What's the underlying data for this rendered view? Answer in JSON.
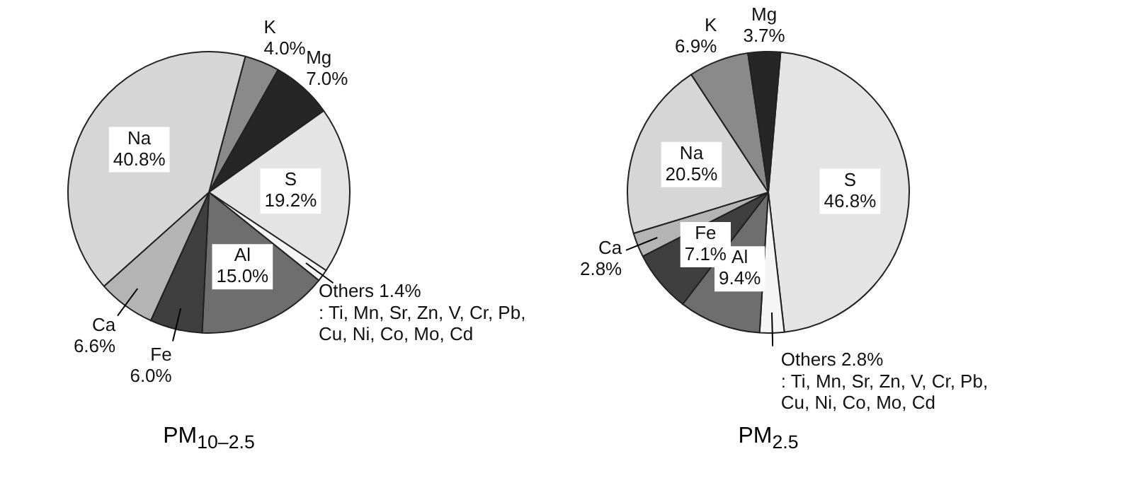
{
  "chart_data": [
    {
      "type": "pie",
      "title": "PM$_{10–2.5}$",
      "categories": [
        "K",
        "Mg",
        "S",
        "Others",
        "Al",
        "Fe",
        "Ca",
        "Na"
      ],
      "values": [
        4.0,
        7.0,
        19.2,
        1.4,
        15.0,
        6.0,
        6.6,
        40.8
      ],
      "value_labels": [
        "4.0%",
        "7.0%",
        "19.2%",
        "1.4%",
        "15.0%",
        "6.0%",
        "6.6%",
        "40.8%"
      ],
      "colors": [
        "#8a8a8a",
        "#262626",
        "#e4e4e4",
        "#f5f5f5",
        "#6e6e6e",
        "#3f3f3f",
        "#b4b4b4",
        "#d6d6d6"
      ],
      "annotations": [
        ": Ti, Mn, Sr, Zn, V, Cr, Pb, Cu, Ni, Co, Mo, Cd"
      ]
    },
    {
      "type": "pie",
      "title": "PM$_{2.5}$",
      "categories": [
        "S",
        "Others",
        "Al",
        "Fe",
        "Ca",
        "Na",
        "K",
        "Mg"
      ],
      "values": [
        46.8,
        2.8,
        9.4,
        7.1,
        2.8,
        20.5,
        6.9,
        3.7
      ],
      "value_labels": [
        "46.8%",
        "2.8%",
        "9.4%",
        "7.1%",
        "2.8%",
        "20.5%",
        "6.9%",
        "3.7%"
      ],
      "colors": [
        "#e4e4e4",
        "#f5f5f5",
        "#6e6e6e",
        "#3f3f3f",
        "#b4b4b4",
        "#d6d6d6",
        "#8a8a8a",
        "#262626"
      ],
      "annotations": [
        ": Ti, Mn, Sr, Zn, V, Cr, Pb, Cu, Ni, Co, Mo, Cd"
      ]
    }
  ]
}
